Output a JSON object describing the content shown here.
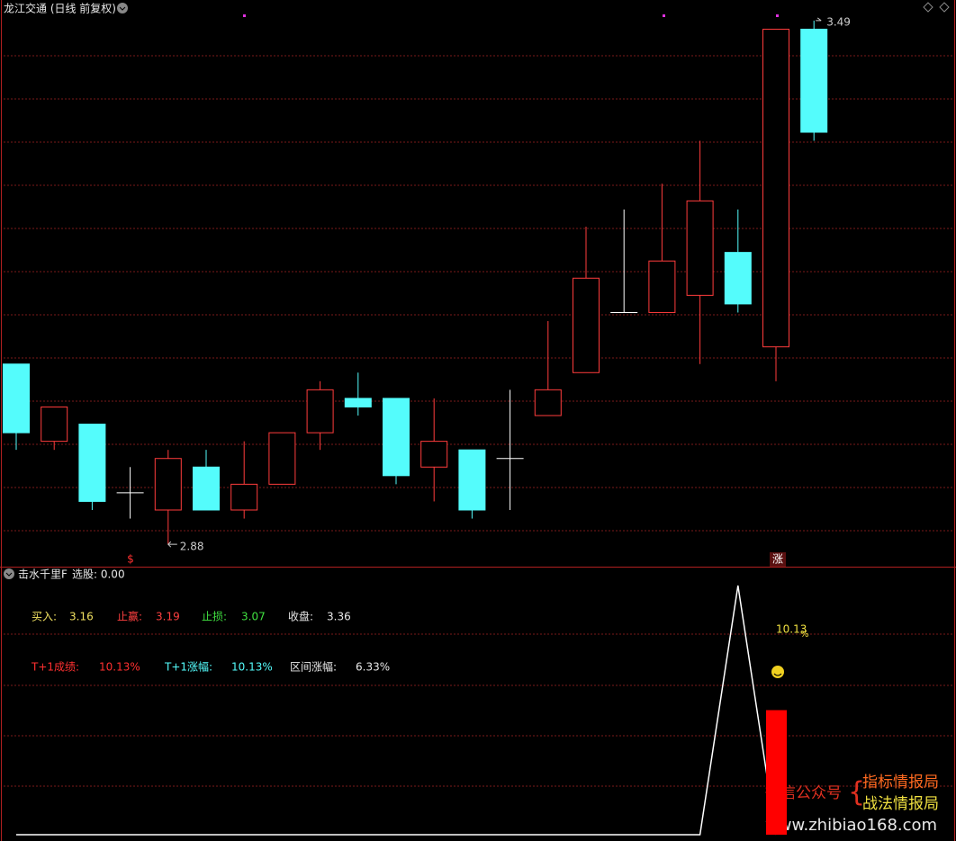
{
  "chart_data": [
    {
      "type": "candlestick",
      "title": "龙江交通 (日线 前复权)",
      "up_color": "#ff3c3c",
      "down_color": "#54fcfc",
      "flat_color": "#ffffff",
      "ylim": [
        2.854,
        3.514
      ],
      "high_label": "3.49",
      "low_label": "2.88",
      "signal_buy": "$",
      "signal_limit": "涨",
      "open": [
        3.09,
        3.0,
        3.02,
        2.94,
        2.92,
        2.97,
        2.92,
        2.95,
        3.01,
        3.05,
        3.05,
        2.97,
        2.99,
        2.98,
        3.03,
        3.08,
        3.15,
        3.15,
        3.17,
        3.22,
        3.11,
        3.48
      ],
      "high": [
        3.09,
        3.04,
        3.02,
        2.97,
        2.99,
        2.99,
        3.0,
        3.01,
        3.07,
        3.08,
        3.05,
        3.05,
        2.99,
        3.06,
        3.14,
        3.25,
        3.27,
        3.3,
        3.35,
        3.27,
        3.48,
        3.49
      ],
      "low": [
        2.99,
        2.99,
        2.92,
        2.91,
        2.88,
        2.92,
        2.91,
        2.95,
        2.99,
        3.03,
        2.95,
        2.93,
        2.91,
        2.92,
        3.03,
        3.08,
        3.15,
        3.15,
        3.09,
        3.15,
        3.07,
        3.35
      ],
      "close": [
        3.01,
        3.04,
        2.93,
        2.94,
        2.98,
        2.92,
        2.95,
        3.01,
        3.06,
        3.04,
        2.96,
        3.0,
        2.92,
        2.98,
        3.06,
        3.19,
        3.15,
        3.21,
        3.28,
        3.16,
        3.48,
        3.36
      ]
    },
    {
      "type": "indicator",
      "title": "击水千里F",
      "subtitle": "选股: 0.00",
      "ylim": [
        0,
        1
      ],
      "line_color": "#ffffff",
      "bar_color": "#ff0000",
      "line_values": [
        0,
        0,
        0,
        0,
        0,
        0,
        0,
        0,
        0,
        0,
        0,
        0,
        0,
        0,
        0,
        0,
        0,
        0,
        0,
        1,
        0,
        null
      ],
      "bar_values": [
        null,
        null,
        null,
        null,
        null,
        null,
        null,
        null,
        null,
        null,
        null,
        null,
        null,
        null,
        null,
        null,
        null,
        null,
        null,
        null,
        0.5,
        null
      ],
      "peak_label": "10.13",
      "peak_unit": "%",
      "stats_row1": [
        {
          "label": "买入:",
          "value": "3.16",
          "color": "#f0e060"
        },
        {
          "label": "止赢:",
          "value": "3.19",
          "color": "#ff4040"
        },
        {
          "label": "止损:",
          "value": "3.07",
          "color": "#40e040"
        },
        {
          "label": "收盘:",
          "value": "3.36",
          "color": "#e8e8e8"
        }
      ],
      "stats_row2": [
        {
          "label": "T+1成绩:",
          "value": "10.13%",
          "color": "#ff3030"
        },
        {
          "label": "T+1涨幅:",
          "value": "10.13%",
          "color": "#54fcfc"
        },
        {
          "label": "区间涨幅:",
          "value": "6.33%",
          "color": "#e8e8e8"
        }
      ]
    }
  ],
  "watermark": {
    "prefix": "微信公众号",
    "line1": "指标情报局",
    "line2": "战法情报局",
    "url": "www.zhibiao168.com"
  }
}
